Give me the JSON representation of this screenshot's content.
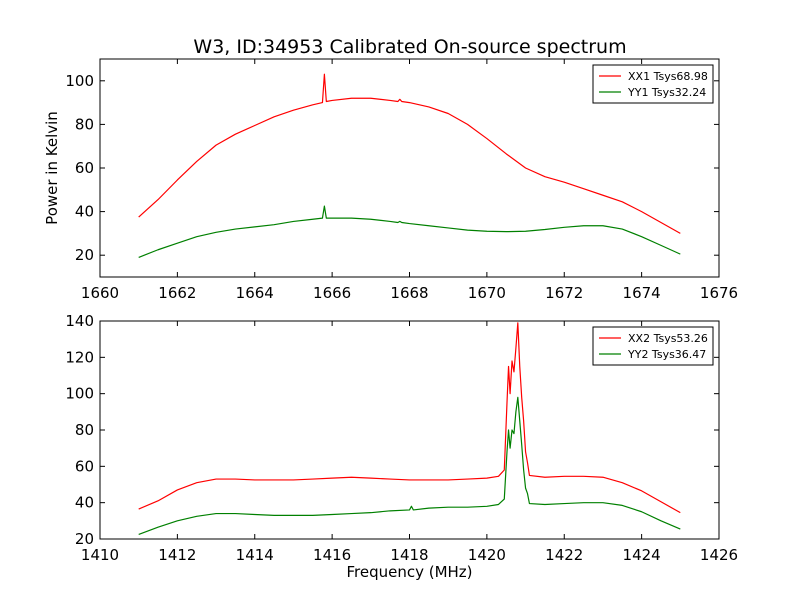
{
  "figure": {
    "title": "W3, ID:34953 Calibrated On-source spectrum"
  },
  "chart_data": [
    {
      "type": "line",
      "title": "W3, ID:34953 Calibrated On-source spectrum",
      "xlabel": "",
      "ylabel": "Power in Kelvin",
      "xlim": [
        1660,
        1676
      ],
      "ylim": [
        10,
        110
      ],
      "xticks": [
        1660,
        1662,
        1664,
        1666,
        1668,
        1670,
        1672,
        1674,
        1676
      ],
      "yticks": [
        20,
        40,
        60,
        80,
        100
      ],
      "grid": false,
      "legend": "top-right",
      "series": [
        {
          "name": "XX1 Tsys68.98",
          "color": "#ff0000",
          "x": [
            1661.0,
            1661.5,
            1662.0,
            1662.5,
            1663.0,
            1663.5,
            1664.0,
            1664.5,
            1665.0,
            1665.5,
            1665.75,
            1665.8,
            1665.85,
            1666.0,
            1666.5,
            1667.0,
            1667.5,
            1667.7,
            1667.75,
            1667.8,
            1668.0,
            1668.5,
            1669.0,
            1669.5,
            1670.0,
            1670.5,
            1671.0,
            1671.5,
            1672.0,
            1672.5,
            1673.0,
            1673.5,
            1674.0,
            1674.5,
            1675.0
          ],
          "y": [
            37.5,
            45.5,
            54.5,
            63.0,
            70.5,
            75.5,
            79.5,
            83.5,
            86.5,
            89.0,
            90.0,
            103.0,
            90.5,
            91.0,
            92.0,
            92.0,
            91.0,
            90.5,
            91.5,
            90.5,
            90.0,
            88.0,
            85.0,
            80.0,
            73.5,
            66.5,
            60.0,
            56.0,
            53.5,
            50.5,
            47.5,
            44.5,
            40.0,
            35.0,
            30.0
          ]
        },
        {
          "name": "YY1 Tsys32.24",
          "color": "#008000",
          "x": [
            1661.0,
            1661.5,
            1662.0,
            1662.5,
            1663.0,
            1663.5,
            1664.0,
            1664.5,
            1665.0,
            1665.5,
            1665.75,
            1665.8,
            1665.85,
            1666.0,
            1666.5,
            1667.0,
            1667.5,
            1667.7,
            1667.75,
            1667.8,
            1668.0,
            1668.5,
            1669.0,
            1669.5,
            1670.0,
            1670.5,
            1671.0,
            1671.5,
            1672.0,
            1672.5,
            1673.0,
            1673.5,
            1674.0,
            1674.5,
            1675.0
          ],
          "y": [
            19.0,
            22.5,
            25.5,
            28.5,
            30.5,
            32.0,
            33.0,
            34.0,
            35.5,
            36.5,
            37.0,
            42.5,
            37.0,
            37.0,
            37.0,
            36.5,
            35.5,
            35.0,
            35.5,
            35.0,
            34.5,
            33.5,
            32.5,
            31.5,
            31.0,
            30.8,
            31.0,
            31.8,
            32.8,
            33.5,
            33.5,
            32.0,
            28.5,
            24.5,
            20.5
          ]
        }
      ]
    },
    {
      "type": "line",
      "title": "",
      "xlabel": "Frequency (MHz)",
      "ylabel": "",
      "xlim": [
        1410,
        1426
      ],
      "ylim": [
        20,
        140
      ],
      "xticks": [
        1410,
        1412,
        1414,
        1416,
        1418,
        1420,
        1422,
        1424,
        1426
      ],
      "yticks": [
        20,
        40,
        60,
        80,
        100,
        120,
        140
      ],
      "grid": false,
      "legend": "top-right",
      "series": [
        {
          "name": "XX2 Tsys53.26",
          "color": "#ff0000",
          "x": [
            1411.0,
            1411.5,
            1412.0,
            1412.5,
            1413.0,
            1413.5,
            1414.0,
            1414.5,
            1415.0,
            1415.5,
            1416.0,
            1416.5,
            1417.0,
            1417.5,
            1418.0,
            1418.5,
            1419.0,
            1419.5,
            1420.0,
            1420.3,
            1420.45,
            1420.52,
            1420.56,
            1420.6,
            1420.65,
            1420.7,
            1420.75,
            1420.8,
            1420.85,
            1420.9,
            1420.95,
            1421.0,
            1421.05,
            1421.1,
            1421.5,
            1422.0,
            1422.5,
            1423.0,
            1423.5,
            1424.0,
            1424.5,
            1425.0
          ],
          "y": [
            36.5,
            41.0,
            47.0,
            51.0,
            53.0,
            53.0,
            52.5,
            52.5,
            52.5,
            53.0,
            53.5,
            54.0,
            53.5,
            53.0,
            52.5,
            52.5,
            52.5,
            53.0,
            53.5,
            54.5,
            58.0,
            95.0,
            115.0,
            100.0,
            118.0,
            112.0,
            125.0,
            139.0,
            115.0,
            98.0,
            85.0,
            68.0,
            62.0,
            55.0,
            54.0,
            54.5,
            54.5,
            54.0,
            51.0,
            46.5,
            40.5,
            34.5
          ]
        },
        {
          "name": "YY2 Tsys36.47",
          "color": "#008000",
          "x": [
            1411.0,
            1411.5,
            1412.0,
            1412.5,
            1413.0,
            1413.5,
            1414.0,
            1414.5,
            1415.0,
            1415.5,
            1416.0,
            1416.5,
            1417.0,
            1417.5,
            1418.0,
            1418.05,
            1418.1,
            1418.5,
            1419.0,
            1419.5,
            1420.0,
            1420.3,
            1420.45,
            1420.52,
            1420.56,
            1420.6,
            1420.65,
            1420.7,
            1420.75,
            1420.8,
            1420.85,
            1420.9,
            1420.95,
            1421.0,
            1421.05,
            1421.1,
            1421.5,
            1422.0,
            1422.5,
            1423.0,
            1423.5,
            1424.0,
            1424.5,
            1425.0
          ],
          "y": [
            22.5,
            26.5,
            30.0,
            32.5,
            34.0,
            34.0,
            33.5,
            33.0,
            33.0,
            33.0,
            33.5,
            34.0,
            34.5,
            35.5,
            36.0,
            38.0,
            36.0,
            37.0,
            37.5,
            37.5,
            38.0,
            39.0,
            42.0,
            68.0,
            80.0,
            70.0,
            80.0,
            78.0,
            90.0,
            98.0,
            85.0,
            72.0,
            58.0,
            48.0,
            45.0,
            39.5,
            39.0,
            39.5,
            40.0,
            40.0,
            38.5,
            35.0,
            30.0,
            25.5
          ]
        }
      ]
    }
  ]
}
